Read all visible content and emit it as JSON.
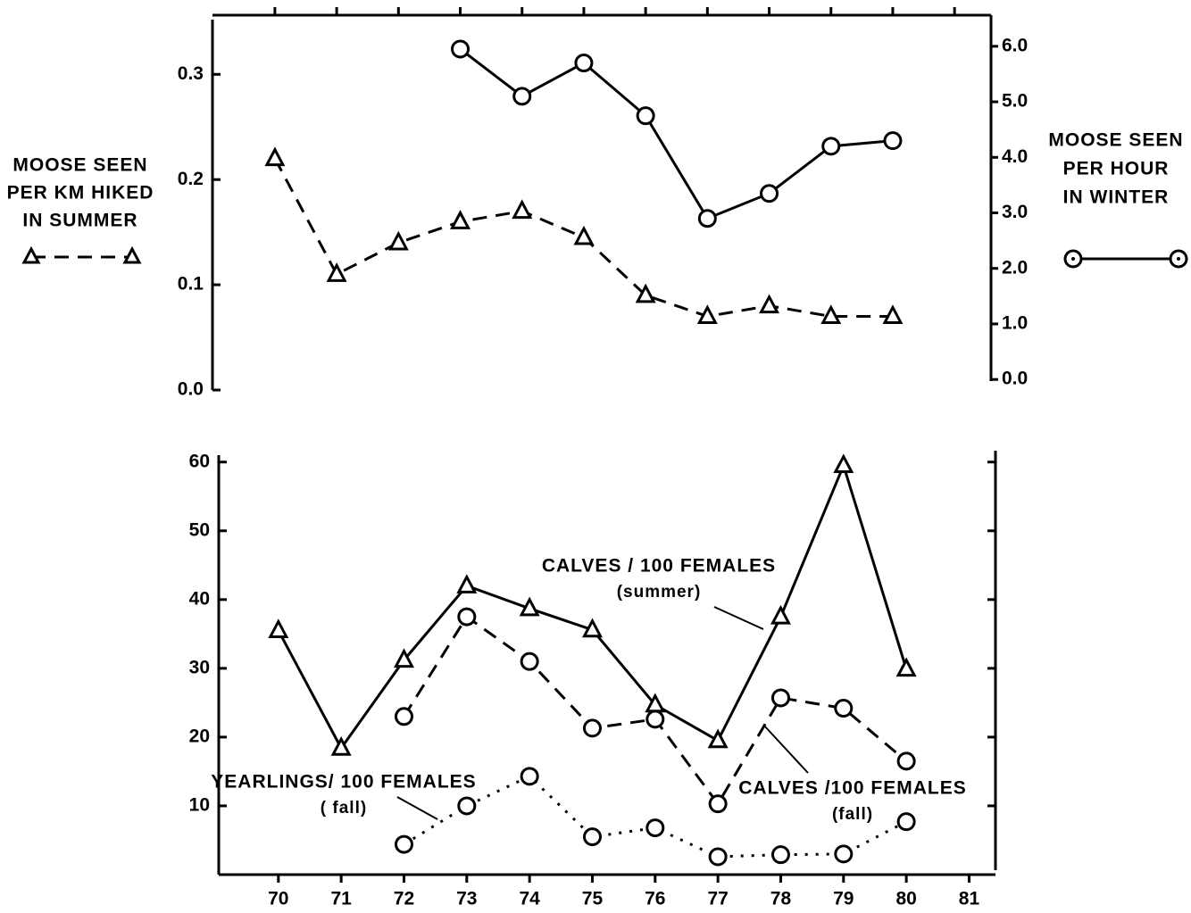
{
  "chart_data": [
    {
      "type": "line",
      "ylabel": [
        "MOOSE SEEN",
        "PER KM HIKED",
        "IN SUMMER"
      ],
      "y2label": [
        "MOOSE SEEN",
        "PER HOUR",
        "IN WINTER"
      ],
      "xlim": [
        68.99,
        81.59
      ],
      "ylim": [
        0,
        0.352
      ],
      "yticks": [
        {
          "value": 0,
          "label": "0.0"
        },
        0.1,
        0.2,
        0.3
      ],
      "y2lim": [
        -0.19,
        6.48
      ],
      "y2ticks": [
        {
          "value": 0,
          "label": "0.0"
        },
        {
          "value": 1,
          "label": "1.0"
        },
        {
          "value": 2,
          "label": "2.0"
        },
        {
          "value": 3,
          "label": "3.0"
        },
        {
          "value": 4,
          "label": "4.0"
        },
        {
          "value": 5,
          "label": "5.0"
        },
        {
          "value": 6,
          "label": "6.0"
        }
      ],
      "series": [
        {
          "color": "#000",
          "marker": "triangle",
          "dash": "dashed",
          "axis": "y",
          "x": [
            70,
            71,
            72,
            73,
            74,
            75,
            76,
            77,
            78,
            79,
            80
          ],
          "values": [
            0.22,
            0.11,
            0.14,
            0.16,
            0.17,
            0.145,
            0.09,
            0.07,
            0.08,
            0.07,
            0.07
          ]
        },
        {
          "color": "#000",
          "marker": "circle",
          "dash": "solid",
          "axis": "y2",
          "x": [
            73,
            74,
            75,
            76,
            77,
            78,
            79,
            80
          ],
          "values": [
            5.95,
            5.1,
            5.7,
            4.75,
            2.9,
            3.35,
            4.2,
            4.3
          ]
        }
      ]
    },
    {
      "type": "line",
      "xlim": [
        69.05,
        81.42
      ],
      "xticks": [
        70,
        71,
        72,
        73,
        74,
        75,
        76,
        77,
        78,
        79,
        80,
        81
      ],
      "ylim": [
        0,
        61
      ],
      "yticks": [
        10,
        20,
        30,
        40,
        50,
        60
      ],
      "series": [
        {
          "label": [
            "CALVES / 100 FEMALES",
            "(summer)"
          ],
          "color": "#000",
          "marker": "triangle",
          "dash": "solid",
          "x": [
            70,
            71,
            72,
            73,
            74,
            75,
            76,
            77,
            78,
            79,
            80
          ],
          "values": [
            35.5,
            18.4,
            31.2,
            42,
            38.7,
            35.6,
            24.7,
            19.5,
            37.5,
            59.5,
            29.9
          ]
        },
        {
          "label": [
            "CALVES /100 FEMALES",
            "(fall)"
          ],
          "color": "#000",
          "marker": "circle",
          "dash": "dashed",
          "x": [
            72,
            73,
            74,
            75,
            76,
            77,
            78,
            79,
            80
          ],
          "values": [
            23,
            37.5,
            31,
            21.3,
            22.6,
            10.3,
            25.7,
            24.2,
            16.5
          ]
        },
        {
          "label": [
            "YEARLINGS/ 100 FEMALES",
            "( fall)"
          ],
          "color": "#000",
          "marker": "circle",
          "dash": "dotted",
          "x": [
            72,
            73,
            74,
            75,
            76,
            77,
            78,
            79,
            80
          ],
          "values": [
            4.4,
            10,
            14.3,
            5.5,
            6.8,
            2.6,
            2.9,
            3,
            7.7
          ]
        }
      ]
    }
  ]
}
